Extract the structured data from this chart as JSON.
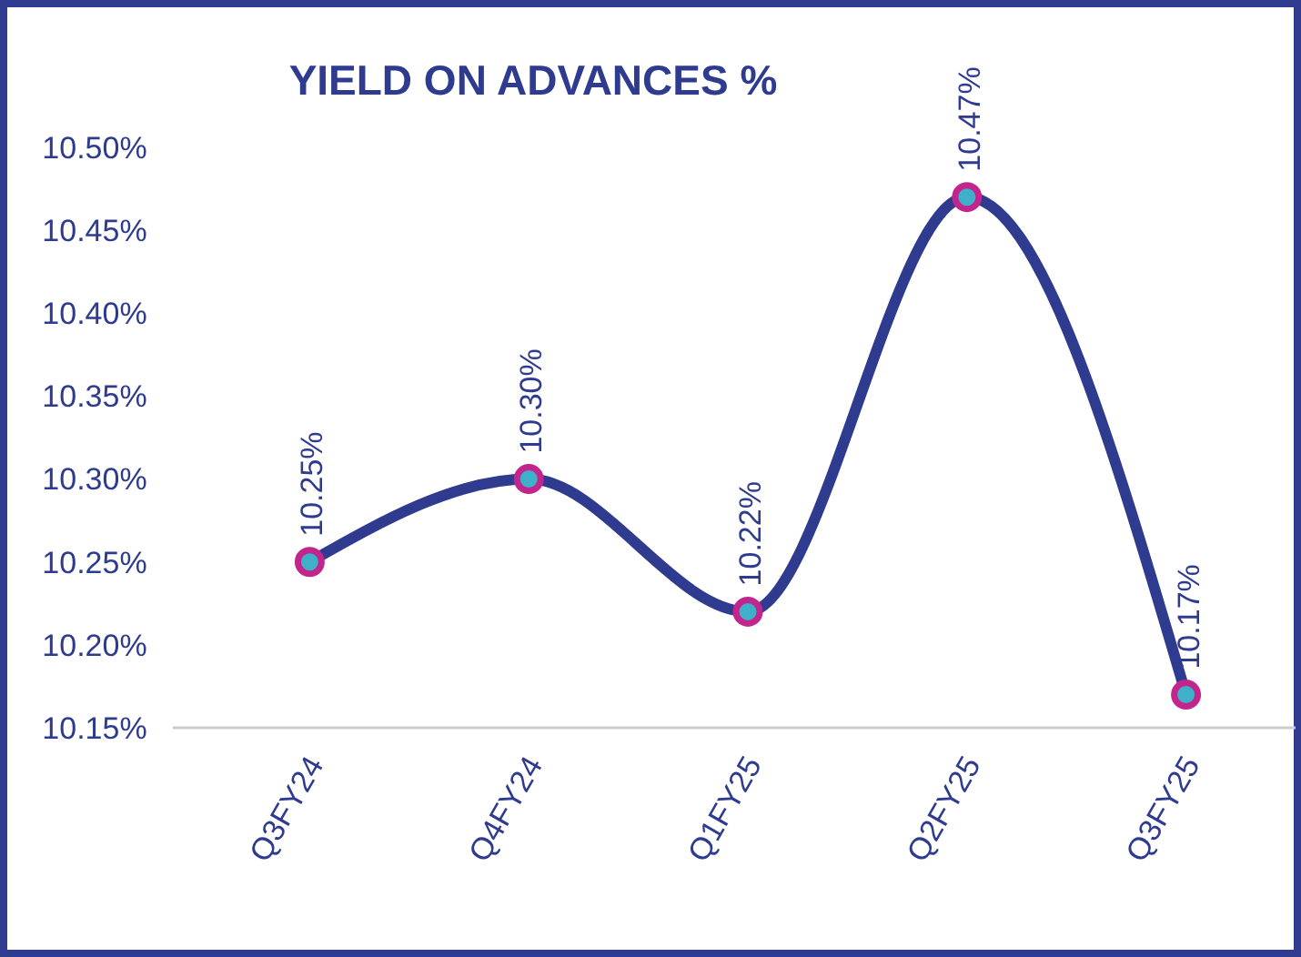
{
  "chart_data": {
    "type": "line",
    "title": "YIELD ON ADVANCES %",
    "categories": [
      "Q3FY24",
      "Q4FY24",
      "Q1FY25",
      "Q2FY25",
      "Q3FY25"
    ],
    "series": [
      {
        "color": "#2e3b8f",
        "values": [
          10.25,
          10.3,
          10.22,
          10.47,
          10.17
        ]
      }
    ],
    "ylim": [
      10.15,
      10.5
    ],
    "yticks": [
      {
        "value": 10.15,
        "label": "10.15%"
      },
      {
        "value": 10.2,
        "label": "10.20%"
      },
      {
        "value": 10.25,
        "label": "10.25%"
      },
      {
        "value": 10.3,
        "label": "10.30%"
      },
      {
        "value": 10.35,
        "label": "10.35%"
      },
      {
        "value": 10.4,
        "label": "10.40%"
      },
      {
        "value": 10.45,
        "label": "10.45%"
      },
      {
        "value": 10.5,
        "label": "10.50%"
      }
    ],
    "value_labels": [
      "10.25%",
      "10.30%",
      "10.22%",
      "10.47%",
      "10.17%"
    ],
    "marker": "circle",
    "line_style": "solid",
    "grid": false
  }
}
